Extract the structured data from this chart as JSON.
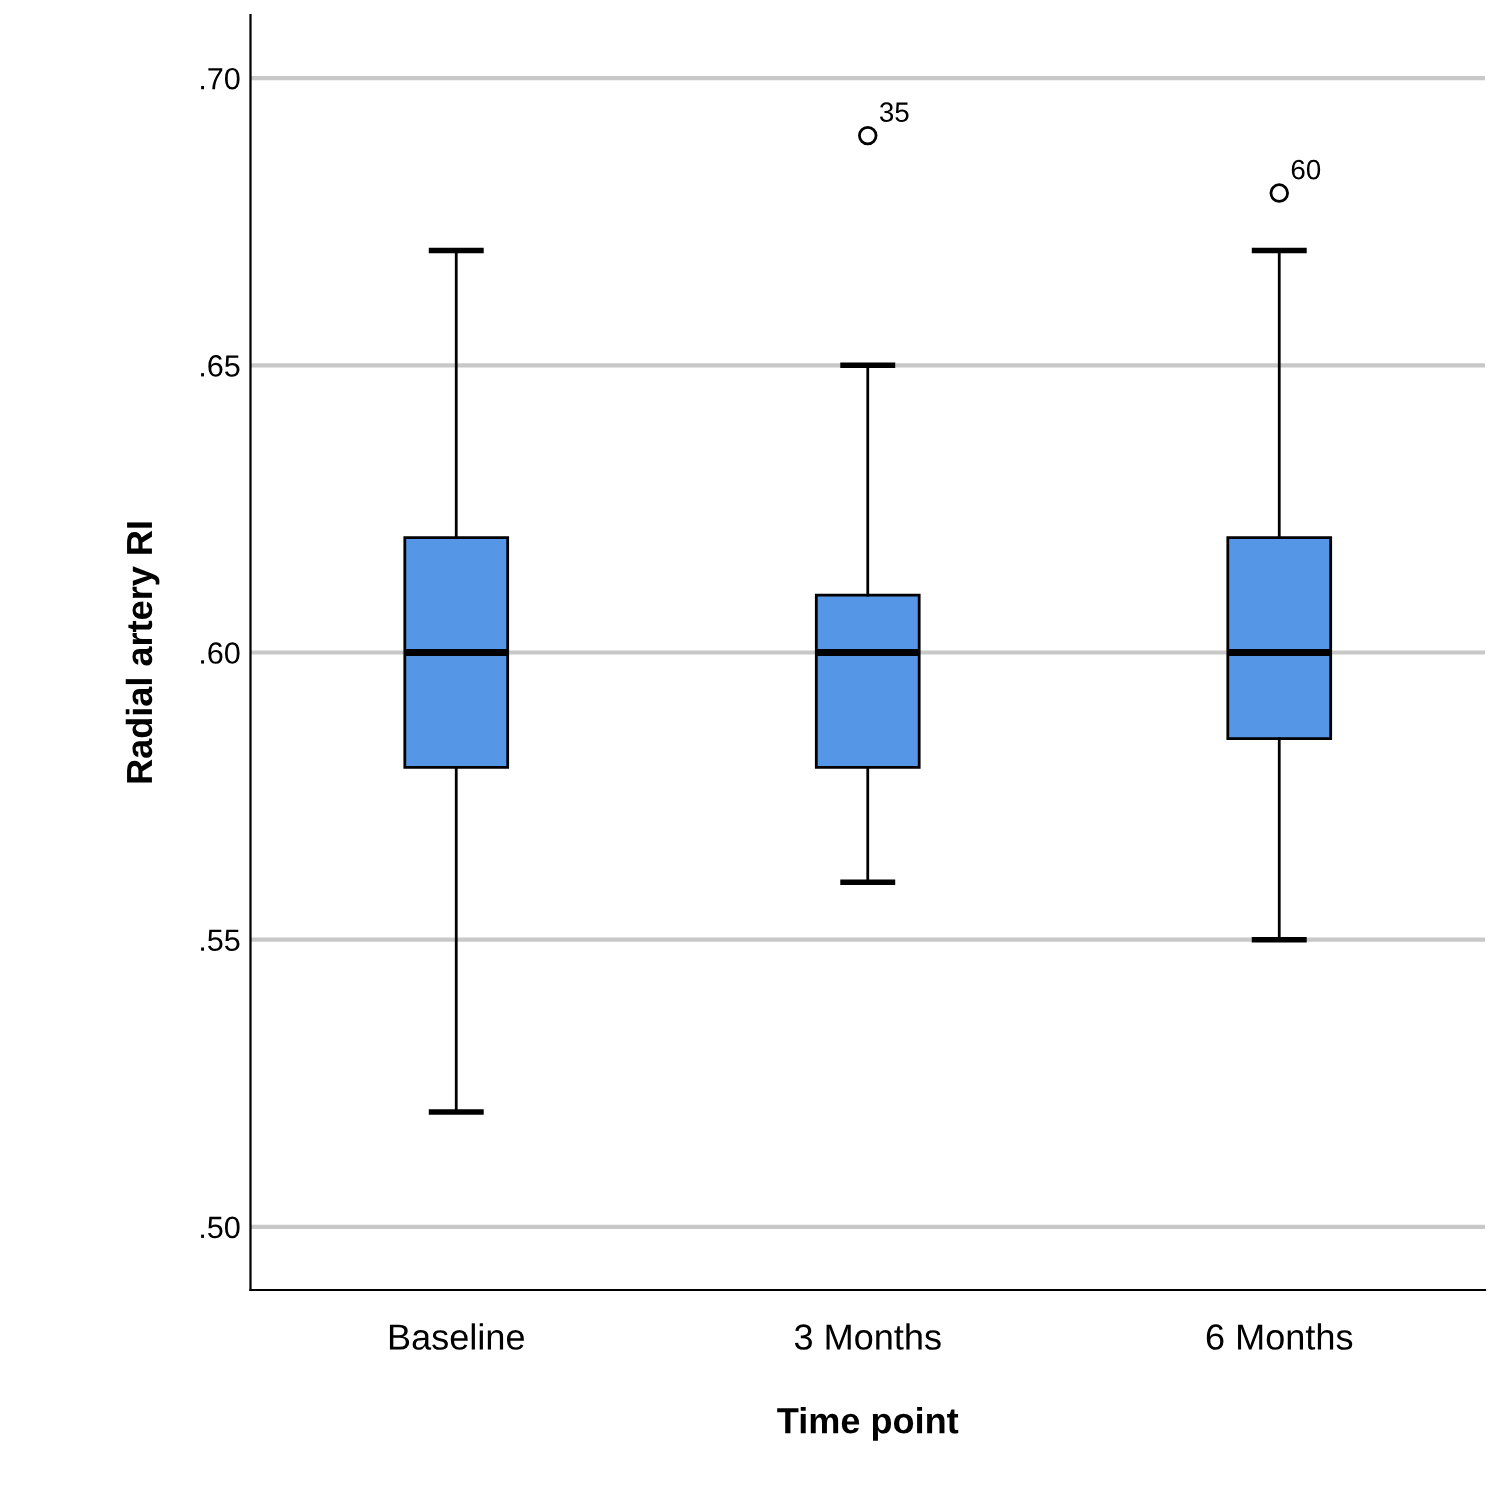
{
  "chart_data": {
    "type": "box",
    "xlabel": "Time point",
    "ylabel": "Radial artery RI",
    "categories": [
      "Baseline",
      "3 Months",
      "6 Months"
    ],
    "boxes": [
      {
        "low": 0.52,
        "q1": 0.58,
        "median": 0.6,
        "q3": 0.62,
        "high": 0.67
      },
      {
        "low": 0.56,
        "q1": 0.58,
        "median": 0.6,
        "q3": 0.61,
        "high": 0.65,
        "outliers": [
          0.69
        ]
      },
      {
        "low": 0.55,
        "q1": 0.585,
        "median": 0.6,
        "q3": 0.62,
        "high": 0.67,
        "outliers": [
          0.68
        ]
      }
    ],
    "color": "#5596e6",
    "ylim": [
      0.489,
      0.711
    ],
    "yticks": [
      {
        "value": 0.5,
        "label": ".50"
      },
      {
        "value": 0.55,
        "label": ".55"
      },
      {
        "value": 0.6,
        "label": ".60"
      },
      {
        "value": 0.65,
        "label": ".65"
      },
      {
        "value": 0.7,
        "label": ".70"
      }
    ],
    "grid": "y",
    "annotations": [
      "35",
      "60"
    ]
  }
}
